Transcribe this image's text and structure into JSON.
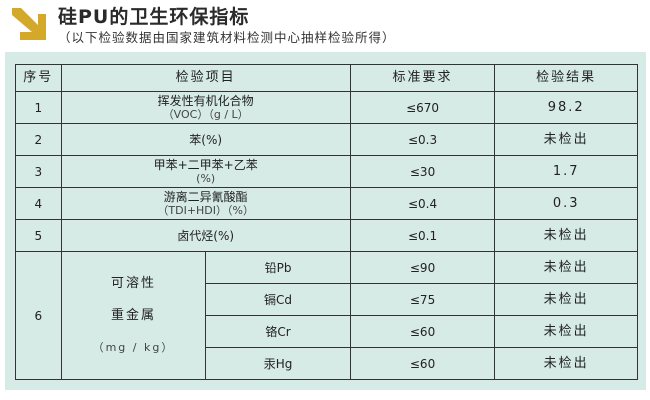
{
  "header": {
    "title": "硅PU的卫生环保指标",
    "subtitle": "（以下检验数据由国家建筑材料检测中心抽样检验所得）",
    "icon": "arrow-down-right-icon",
    "accent_color": "#d4a92a"
  },
  "table": {
    "columns": [
      "序号",
      "检验项目",
      "标准要求",
      "检验结果"
    ],
    "rows": [
      {
        "no": "1",
        "item": "挥发性有机化合物",
        "unit": "（VOC）（g / L）",
        "standard": "≤670",
        "result": "98.2"
      },
      {
        "no": "2",
        "item": "苯(%)",
        "unit": "",
        "standard": "≤0.3",
        "result": "未检出"
      },
      {
        "no": "3",
        "item": "甲苯+二甲苯+乙苯",
        "unit": "(%)",
        "standard": "≤30",
        "result": "1.7"
      },
      {
        "no": "4",
        "item": "游离二异氰酸酯",
        "unit": "（TDI+HDI）（%）",
        "standard": "≤0.4",
        "result": "0.3"
      },
      {
        "no": "5",
        "item": "卤代烃(%)",
        "unit": "",
        "standard": "≤0.1",
        "result": "未检出"
      }
    ],
    "heavy_metals": {
      "no": "6",
      "label_line1": "可溶性",
      "label_line2": "重金属",
      "label_unit": "（mg / kg）",
      "items": [
        {
          "name": "铅Pb",
          "standard": "≤90",
          "result": "未检出"
        },
        {
          "name": "镉Cd",
          "standard": "≤75",
          "result": "未检出"
        },
        {
          "name": "铬Cr",
          "standard": "≤60",
          "result": "未检出"
        },
        {
          "name": "汞Hg",
          "standard": "≤60",
          "result": "未检出"
        }
      ]
    },
    "panel_color": "#d6ebe5"
  }
}
